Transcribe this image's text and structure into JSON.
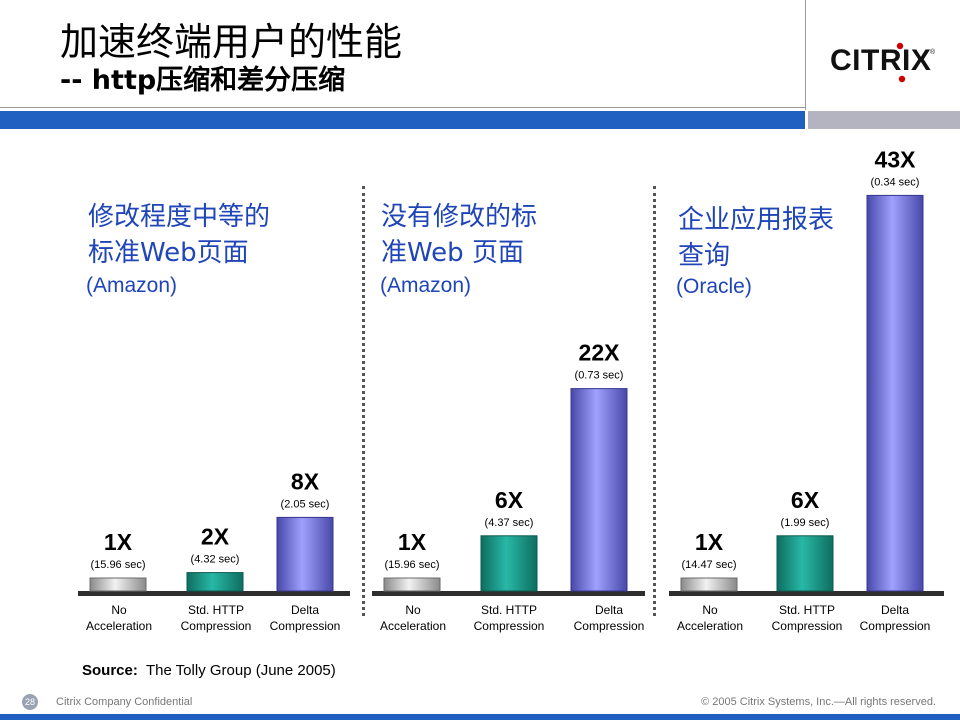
{
  "slide": {
    "title": "加速终端用户的性能",
    "subtitle": "-- http压缩和差分压缩",
    "logo_text": "CiTRiX",
    "source_label": "Source:",
    "source_text": "The Tolly Group (June 2005)",
    "footer_left": "Citrix Company Confidential",
    "footer_right": "© 2005 Citrix Systems, Inc.—All rights reserved.",
    "page_number": "28"
  },
  "colors": {
    "accent_blue": "#2060c0",
    "heading_blue": "#1f45b8",
    "bar_no_accel": "#c8c8c8",
    "bar_http": "#1a9a8a",
    "bar_delta": "#7878e0"
  },
  "panels": [
    {
      "heading": [
        "修改程度中等的",
        "标准Web页面"
      ],
      "source": "(Amazon)"
    },
    {
      "heading": [
        "没有修改的标",
        "准Web 页面"
      ],
      "source": "(Amazon)"
    },
    {
      "heading": [
        "企业应用报表",
        "查询"
      ],
      "source": "(Oracle)"
    }
  ],
  "chart_data": [
    {
      "type": "bar",
      "categories": [
        "No Acceleration",
        "Std. HTTP Compression",
        "Delta Compression"
      ],
      "values": [
        1,
        2,
        8
      ],
      "value_labels": [
        "1X",
        "2X",
        "8X"
      ],
      "time_labels": [
        "(15.96 sec)",
        "(4.32 sec)",
        "(2.05 sec)"
      ]
    },
    {
      "type": "bar",
      "categories": [
        "No Acceleration",
        "Std. HTTP Compression",
        "Delta Compression"
      ],
      "values": [
        1,
        6,
        22
      ],
      "value_labels": [
        "1X",
        "6X",
        "22X"
      ],
      "time_labels": [
        "(15.96 sec)",
        "(4.37 sec)",
        "(0.73 sec)"
      ]
    },
    {
      "type": "bar",
      "categories": [
        "No Acceleration",
        "Std. HTTP Compression",
        "Delta Compression"
      ],
      "values": [
        1,
        6,
        43
      ],
      "value_labels": [
        "1X",
        "6X",
        "43X"
      ],
      "time_labels": [
        "(14.47 sec)",
        "(1.99 sec)",
        "(0.34 sec)"
      ]
    }
  ]
}
